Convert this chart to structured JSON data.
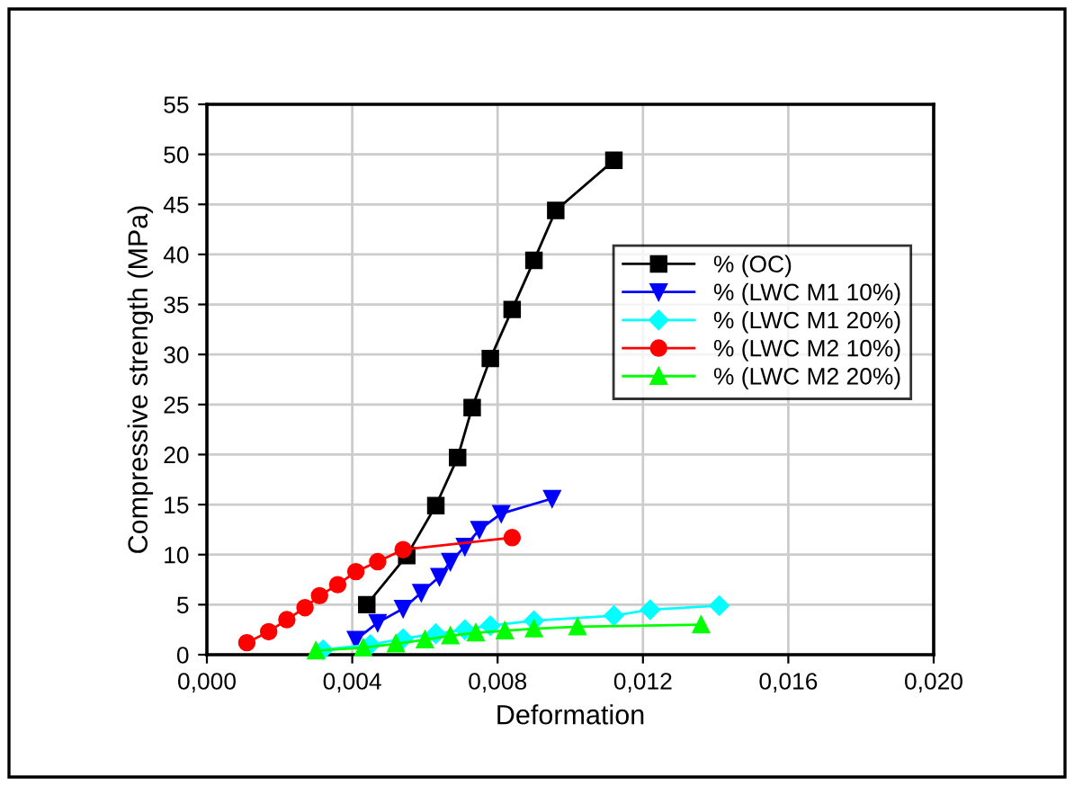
{
  "chart_data": {
    "type": "line",
    "xlabel": "Deformation",
    "ylabel": "Compressive strength (MPa)",
    "xlim": [
      0,
      0.02
    ],
    "xticks": [
      {
        "value": 0,
        "label": "0,000"
      },
      {
        "value": 0.004,
        "label": "0,004"
      },
      {
        "value": 0.008,
        "label": "0,008"
      },
      {
        "value": 0.012,
        "label": "0,012"
      },
      {
        "value": 0.016,
        "label": "0,016"
      },
      {
        "value": 0.02,
        "label": "0,020"
      }
    ],
    "ylim": [
      0,
      55
    ],
    "yticks": [
      0,
      5,
      10,
      15,
      20,
      25,
      30,
      35,
      40,
      45,
      50,
      55
    ],
    "grid": true,
    "legend": "top right",
    "line_style": "solid",
    "series": [
      {
        "name": "% (OC)",
        "color": "#000000",
        "marker": "square",
        "x": [
          0.0044,
          0.0055,
          0.0063,
          0.0069,
          0.0073,
          0.0078,
          0.0084,
          0.009,
          0.0096,
          0.0112
        ],
        "values": [
          5.0,
          9.9,
          14.9,
          19.7,
          24.7,
          29.6,
          34.5,
          39.4,
          44.4,
          49.4
        ]
      },
      {
        "name": "% (LWC M1 10%)",
        "color": "#0000ff",
        "marker": "triangle_down",
        "x": [
          0.0041,
          0.0047,
          0.0054,
          0.0059,
          0.0064,
          0.0067,
          0.0071,
          0.0075,
          0.0081,
          0.0095
        ],
        "values": [
          1.5,
          3.2,
          4.6,
          6.2,
          7.8,
          9.3,
          10.8,
          12.5,
          14.1,
          15.6
        ]
      },
      {
        "name": "% (LWC M1 20%)",
        "color": "#00ffff",
        "marker": "diamond",
        "x": [
          0.0032,
          0.0045,
          0.0054,
          0.0063,
          0.0071,
          0.0078,
          0.009,
          0.0112,
          0.0122,
          0.0141
        ],
        "values": [
          0.5,
          1.0,
          1.6,
          2.1,
          2.5,
          2.9,
          3.4,
          3.9,
          4.5,
          4.9
        ]
      },
      {
        "name": "% (LWC M2 10%)",
        "color": "#ff0000",
        "marker": "circle",
        "x": [
          0.0011,
          0.0017,
          0.0022,
          0.0027,
          0.0031,
          0.0036,
          0.0041,
          0.0047,
          0.0054,
          0.0084
        ],
        "values": [
          1.2,
          2.3,
          3.5,
          4.7,
          5.9,
          7.0,
          8.3,
          9.3,
          10.5,
          11.7
        ]
      },
      {
        "name": "% (LWC M2 20%)",
        "color": "#00ff00",
        "marker": "triangle",
        "x": [
          0.003,
          0.0043,
          0.0052,
          0.006,
          0.0067,
          0.0074,
          0.0082,
          0.009,
          0.0102,
          0.0136
        ],
        "values": [
          0.4,
          0.7,
          1.1,
          1.5,
          1.9,
          2.2,
          2.4,
          2.6,
          2.8,
          3.0
        ]
      }
    ]
  }
}
